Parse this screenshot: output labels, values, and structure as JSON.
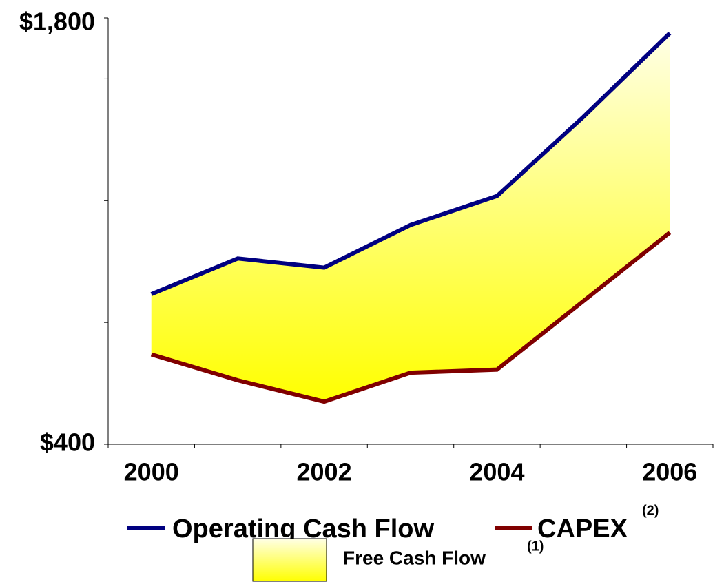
{
  "chart_data": {
    "type": "line",
    "categories": [
      "2000",
      null,
      "2002",
      null,
      "2004",
      null,
      "2006"
    ],
    "series": [
      {
        "name": "Operating Cash Flow",
        "color": "#000080",
        "values": [
          893,
          1010,
          980,
          1120,
          1215,
          1475,
          1750
        ]
      },
      {
        "name": "CAPEX",
        "superscript": "(2)",
        "color": "#800000",
        "values": [
          695,
          610,
          540,
          635,
          645,
          870,
          1095
        ]
      }
    ],
    "area": {
      "name": "Free Cash Flow",
      "superscript": "(1)",
      "colors": [
        "#ffffe6",
        "#ffff00"
      ]
    },
    "ylim": [
      400,
      1800
    ],
    "yticks": [
      {
        "value": 400,
        "label": "$400"
      },
      {
        "value": 800,
        "label": null
      },
      {
        "value": 1200,
        "label": null
      },
      {
        "value": 1600,
        "label": null
      },
      {
        "value": 1800,
        "label": "$1,800"
      }
    ]
  }
}
